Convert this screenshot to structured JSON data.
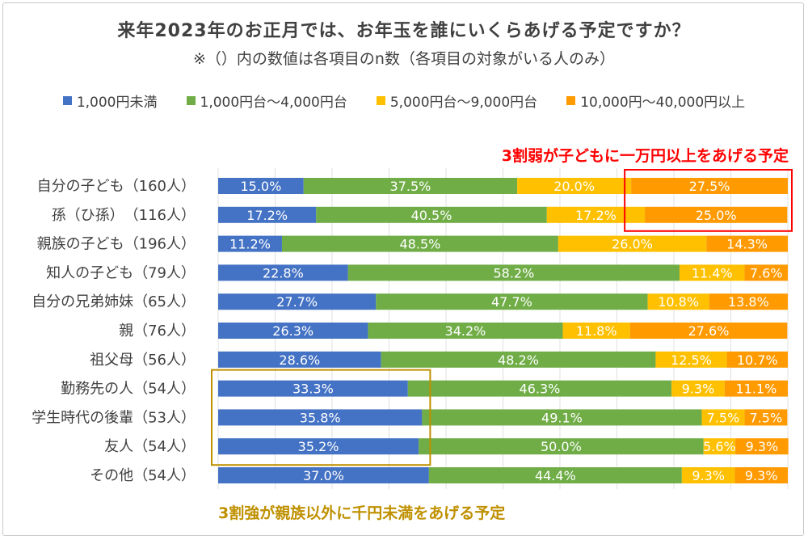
{
  "title": "来年2023年のお正月では、お年玉を誰にいくらあげる予定ですか？",
  "subtitle": "※（）内の数値は各項目のn数（各項目の対象がいる人のみ）",
  "annotations": {
    "red": "3割弱が子どもに一万円以上をあげる予定",
    "gold": "3割強が親族以外に千円未満をあげる予定"
  },
  "chart_data": {
    "type": "bar",
    "orientation": "horizontal",
    "stacked": "100%",
    "title": "来年2023年のお正月では、お年玉を誰にいくらあげる予定ですか？",
    "legend_position": "top",
    "categories": [
      "自分の子ども（160人）",
      "孫（ひ孫）　（116人）",
      "親族の子ども（196人）",
      "知人の子ども（79人）",
      "自分の兄弟姉妹（65人）",
      "親（76人）",
      "祖父母（56人）",
      "勤務先の人（54人）",
      "学生時代の後輩（53人）",
      "友人（54人）",
      "その他（54人）"
    ],
    "series": [
      {
        "name": "1,000円未満",
        "color": "#4472c4",
        "values": [
          15.0,
          17.2,
          11.2,
          22.8,
          27.7,
          26.3,
          28.6,
          33.3,
          35.8,
          35.2,
          37.0
        ]
      },
      {
        "name": "1,000円台～4,000円台",
        "color": "#70ad47",
        "values": [
          37.5,
          40.5,
          48.5,
          58.2,
          47.7,
          34.2,
          48.2,
          46.3,
          49.1,
          50.0,
          44.4
        ]
      },
      {
        "name": "5,000円台～9,000円台",
        "color": "#ffc000",
        "values": [
          20.0,
          17.2,
          26.0,
          11.4,
          10.8,
          11.8,
          12.5,
          9.3,
          7.5,
          5.6,
          9.3
        ]
      },
      {
        "name": "10,000円～40,000円以上",
        "color": "#ff9a00",
        "values": [
          27.5,
          25.0,
          14.3,
          7.6,
          13.8,
          27.6,
          10.7,
          11.1,
          7.5,
          9.3,
          9.3
        ]
      }
    ],
    "xlim": [
      0,
      100
    ],
    "value_format": "0.0%"
  }
}
